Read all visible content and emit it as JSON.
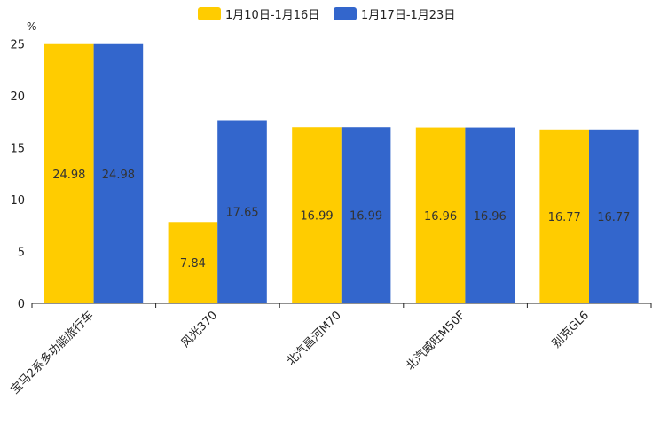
{
  "chart_data": {
    "type": "bar",
    "title": "",
    "xlabel": "",
    "ylabel": "%",
    "ylim": [
      0,
      25
    ],
    "yticks": [
      0,
      5,
      10,
      15,
      20,
      25
    ],
    "categories": [
      "宝马2系多功能旅行车",
      "风光370",
      "北汽昌河M70",
      "北汽威旺M50F",
      "别克GL6"
    ],
    "series": [
      {
        "name": "1月10日-1月16日",
        "color": "#FFCC00",
        "values": [
          24.98,
          7.84,
          16.99,
          16.96,
          16.77
        ]
      },
      {
        "name": "1月17日-1月23日",
        "color": "#3366CC",
        "values": [
          24.98,
          17.65,
          16.99,
          16.96,
          16.77
        ]
      }
    ],
    "value_labels": [
      [
        "24.98",
        "7.84",
        "16.99",
        "16.96",
        "16.77"
      ],
      [
        "24.98",
        "17.65",
        "16.99",
        "16.96",
        "16.77"
      ]
    ],
    "legend_position": "top-center",
    "grid": false
  }
}
